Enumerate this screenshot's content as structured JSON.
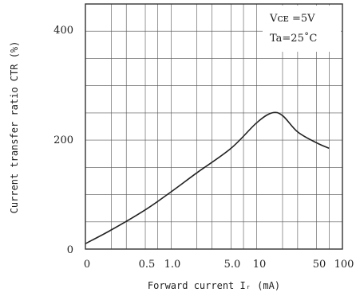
{
  "chart_data": {
    "type": "line",
    "title": "",
    "xlabel": "Forward current Iᵣ  (mA)",
    "ylabel": "Current transfer ratio CTR (%)",
    "x_scale": "log",
    "xlim": [
      0.1,
      100
    ],
    "ylim": [
      0,
      450
    ],
    "x_tick_labels": [
      "0",
      "0.5",
      "1.0",
      "5.0",
      "10",
      "50",
      "100"
    ],
    "y_tick_labels": [
      "0",
      "200",
      "400"
    ],
    "grid": true,
    "annotations": [
      "Vᴄᴇ =5V",
      "Ta=25˚C"
    ],
    "series": [
      {
        "x": [
          0.1,
          0.2,
          0.5,
          1.0,
          2.0,
          5.0,
          10,
          15,
          20,
          30,
          50,
          70
        ],
        "values": [
          10,
          35,
          72,
          105,
          140,
          185,
          232,
          250,
          245,
          215,
          195,
          185
        ]
      }
    ]
  }
}
